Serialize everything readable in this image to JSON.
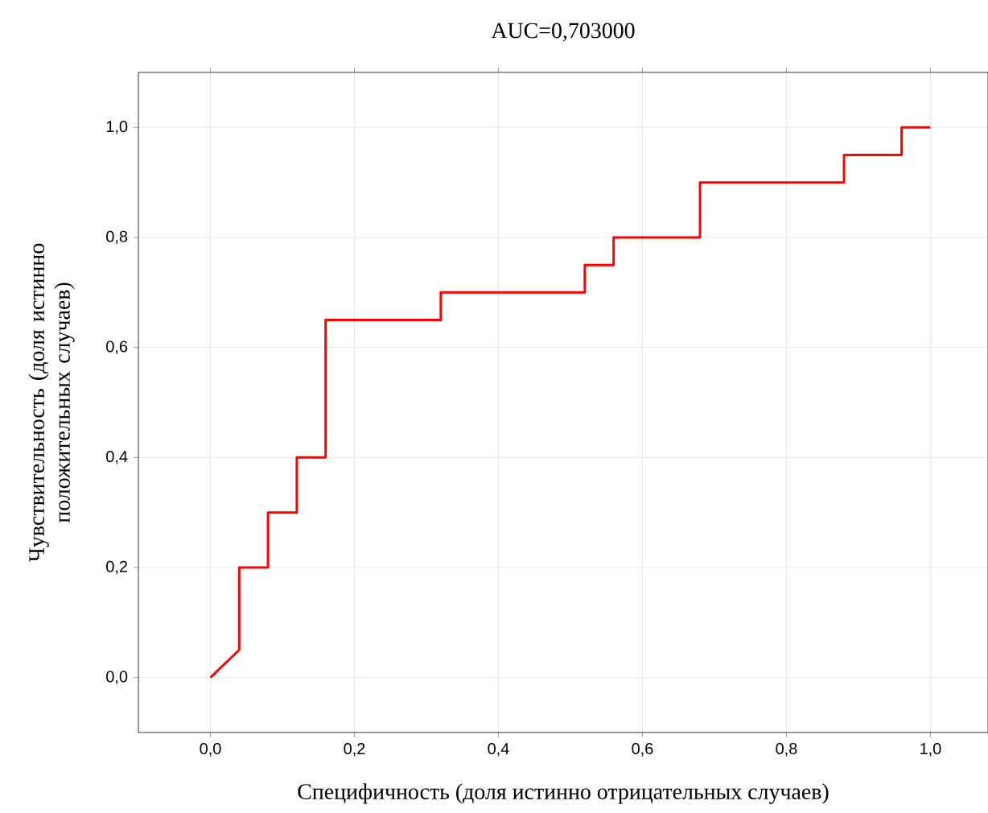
{
  "chart_data": {
    "type": "line",
    "title": "AUC=0,703000",
    "xlabel": "Специфичность (доля истинно отрицательных случаев)",
    "ylabel": "Чувствительность  (доля истинно положительных случаев)",
    "series": [
      {
        "color": "#ff0000",
        "x": [
          0,
          0.04,
          0.04,
          0.08,
          0.08,
          0.12,
          0.12,
          0.16,
          0.16,
          0.32,
          0.32,
          0.52,
          0.52,
          0.56,
          0.56,
          0.68,
          0.68,
          0.88,
          0.88,
          0.96,
          0.96,
          1.0
        ],
        "values": [
          0,
          0.05,
          0.2,
          0.2,
          0.3,
          0.3,
          0.4,
          0.4,
          0.65,
          0.65,
          0.7,
          0.7,
          0.75,
          0.75,
          0.8,
          0.8,
          0.9,
          0.9,
          0.95,
          0.95,
          1.0,
          1.0
        ]
      }
    ],
    "xlim": [
      -0.1,
      1.08
    ],
    "ylim": [
      -0.1,
      1.1
    ],
    "xticks": [
      {
        "value": 0,
        "label": "0,0"
      },
      {
        "value": 0.2,
        "label": "0,2"
      },
      {
        "value": 0.4,
        "label": "0,4"
      },
      {
        "value": 0.6,
        "label": "0,6"
      },
      {
        "value": 0.8,
        "label": "0,8"
      },
      {
        "value": 1.0,
        "label": "1,0"
      }
    ],
    "yticks": [
      {
        "value": 0,
        "label": "0,0"
      },
      {
        "value": 0.2,
        "label": "0,2"
      },
      {
        "value": 0.4,
        "label": "0,4"
      },
      {
        "value": 0.6,
        "label": "0,6"
      },
      {
        "value": 0.8,
        "label": "0,8"
      },
      {
        "value": 1.0,
        "label": "1,0"
      }
    ],
    "grid": true
  }
}
